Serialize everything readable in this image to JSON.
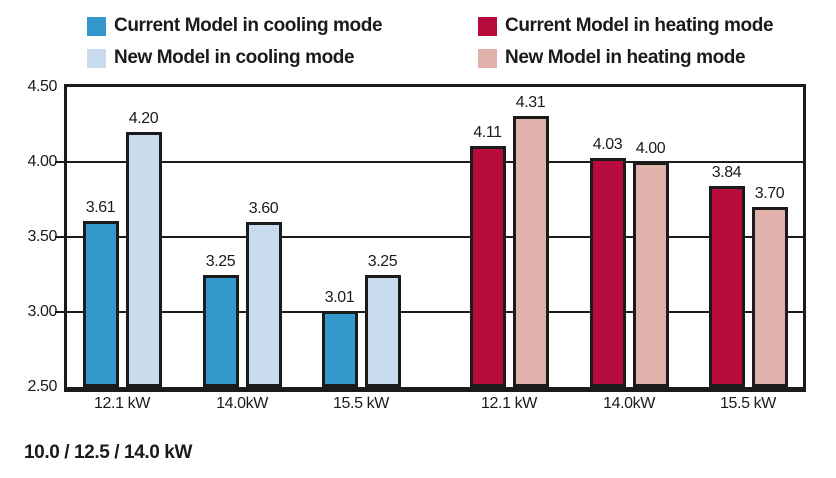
{
  "colors": {
    "ink": "#1b1b1b",
    "background": "#ffffff",
    "current_cooling": "#3399cd",
    "new_cooling": "#c8dcee",
    "current_heating": "#b70a3d",
    "new_heating": "#e1b2ac"
  },
  "chart_data": {
    "type": "bar",
    "title": "",
    "xlabel": "",
    "ylabel": "",
    "ylim": [
      2.5,
      4.5
    ],
    "yticks": [
      "4.50",
      "4.00",
      "3.50",
      "3.00",
      "2.50"
    ],
    "gridlines": [
      4.0,
      3.5,
      3.0
    ],
    "grid": true,
    "legend_position": "top",
    "value_labels": true,
    "sections": [
      {
        "name": "cooling",
        "categories": [
          "12.1 kW",
          "14.0kW",
          "15.5 kW"
        ],
        "series": [
          {
            "name": "Current Model in cooling mode",
            "color": "#3399cd",
            "values": [
              3.61,
              3.25,
              3.01
            ]
          },
          {
            "name": "New Model in cooling mode",
            "color": "#c8dcee",
            "values": [
              4.2,
              3.6,
              3.25
            ]
          }
        ]
      },
      {
        "name": "heating",
        "categories": [
          "12.1 kW",
          "14.0kW",
          "15.5 kW"
        ],
        "series": [
          {
            "name": "Current Model in heating mode",
            "color": "#b70a3d",
            "values": [
              4.11,
              4.03,
              3.84
            ]
          },
          {
            "name": "New Model in heating mode",
            "color": "#e1b2ac",
            "values": [
              4.31,
              4.0,
              3.7
            ]
          }
        ]
      }
    ]
  },
  "footer": {
    "text": "10.0 / 12.5 / 14.0 kW"
  }
}
